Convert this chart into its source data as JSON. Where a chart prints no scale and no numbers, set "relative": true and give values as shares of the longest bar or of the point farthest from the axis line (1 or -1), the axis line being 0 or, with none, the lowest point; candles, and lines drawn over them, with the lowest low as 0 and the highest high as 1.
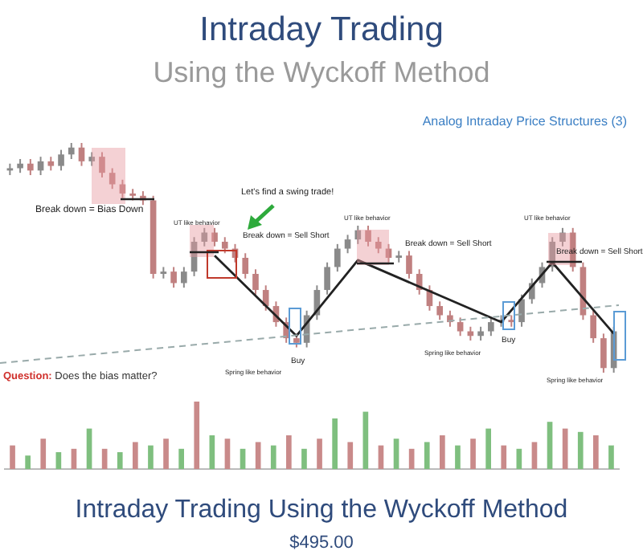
{
  "chart_data": [
    {
      "type": "candlestick",
      "title": "Intraday Trading",
      "subtitle": "Using the Wyckoff Method",
      "relative": true,
      "colors": [
        "#8a8a8a",
        "#8a8a8a",
        "#c08080",
        "#8a8a8a",
        "#c08080",
        "#8a8a8a",
        "#8a8a8a",
        "#c08080",
        "#8a8a8a",
        "#c08080",
        "#c08080",
        "#c08080",
        "#c08080",
        "#c08080",
        "#c08080",
        "#8a8a8a",
        "#c08080",
        "#8a8a8a",
        "#8a8a8a",
        "#8a8a8a",
        "#c08080",
        "#c08080",
        "#c08080",
        "#c08080",
        "#c08080",
        "#c08080",
        "#c08080",
        "#c08080",
        "#c08080",
        "#8a8a8a",
        "#8a8a8a",
        "#8a8a8a",
        "#8a8a8a",
        "#8a8a8a",
        "#8a8a8a",
        "#c08080",
        "#c08080",
        "#c08080",
        "#8a8a8a",
        "#c08080",
        "#c08080",
        "#c08080",
        "#c08080",
        "#c08080",
        "#c08080",
        "#c08080",
        "#8a8a8a",
        "#8a8a8a",
        "#8a8a8a",
        "#c08080",
        "#8a8a8a",
        "#8a8a8a",
        "#8a8a8a",
        "#8a8a8a",
        "#8a8a8a",
        "#c08080",
        "#c08080",
        "#c08080",
        "#c08080",
        "#8a8a8a"
      ],
      "categories": [
        null,
        null,
        null,
        null,
        null,
        null,
        null,
        null,
        null,
        null,
        null,
        null,
        null,
        null,
        null,
        null,
        null,
        null,
        null,
        null,
        null,
        null,
        null,
        null,
        null,
        null,
        null,
        null,
        null,
        null,
        null,
        null,
        null,
        null,
        null,
        null,
        null,
        null,
        null,
        null,
        null,
        null,
        null,
        null,
        null,
        null,
        null,
        null,
        null,
        null,
        null,
        null,
        null,
        null,
        null,
        null,
        null,
        null,
        null,
        null
      ],
      "ohlc": [
        [
          0.88,
          0.91,
          0.86,
          0.89
        ],
        [
          0.89,
          0.93,
          0.87,
          0.91
        ],
        [
          0.91,
          0.93,
          0.86,
          0.88
        ],
        [
          0.88,
          0.94,
          0.86,
          0.92
        ],
        [
          0.92,
          0.94,
          0.88,
          0.9
        ],
        [
          0.9,
          0.97,
          0.88,
          0.95
        ],
        [
          0.95,
          1.0,
          0.93,
          0.98
        ],
        [
          0.98,
          1.0,
          0.9,
          0.92
        ],
        [
          0.92,
          0.96,
          0.9,
          0.94
        ],
        [
          0.94,
          0.96,
          0.85,
          0.87
        ],
        [
          0.87,
          0.89,
          0.8,
          0.82
        ],
        [
          0.82,
          0.84,
          0.76,
          0.78
        ],
        [
          0.78,
          0.8,
          0.75,
          0.77
        ],
        [
          0.77,
          0.79,
          0.73,
          0.75
        ],
        [
          0.75,
          0.77,
          0.41,
          0.43
        ],
        [
          0.43,
          0.46,
          0.41,
          0.44
        ],
        [
          0.44,
          0.46,
          0.37,
          0.39
        ],
        [
          0.39,
          0.46,
          0.37,
          0.44
        ],
        [
          0.44,
          0.59,
          0.42,
          0.57
        ],
        [
          0.57,
          0.63,
          0.55,
          0.61
        ],
        [
          0.61,
          0.63,
          0.55,
          0.57
        ],
        [
          0.57,
          0.59,
          0.52,
          0.54
        ],
        [
          0.54,
          0.56,
          0.48,
          0.5
        ],
        [
          0.5,
          0.52,
          0.41,
          0.43
        ],
        [
          0.43,
          0.45,
          0.34,
          0.36
        ],
        [
          0.36,
          0.38,
          0.27,
          0.29
        ],
        [
          0.29,
          0.31,
          0.2,
          0.22
        ],
        [
          0.22,
          0.24,
          0.13,
          0.15
        ],
        [
          0.15,
          0.17,
          0.11,
          0.13
        ],
        [
          0.13,
          0.27,
          0.11,
          0.25
        ],
        [
          0.25,
          0.38,
          0.23,
          0.36
        ],
        [
          0.36,
          0.48,
          0.34,
          0.46
        ],
        [
          0.46,
          0.56,
          0.44,
          0.54
        ],
        [
          0.54,
          0.6,
          0.52,
          0.58
        ],
        [
          0.58,
          0.64,
          0.56,
          0.62
        ],
        [
          0.62,
          0.64,
          0.55,
          0.57
        ],
        [
          0.57,
          0.59,
          0.52,
          0.54
        ],
        [
          0.54,
          0.56,
          0.48,
          0.5
        ],
        [
          0.5,
          0.53,
          0.48,
          0.51
        ],
        [
          0.51,
          0.53,
          0.41,
          0.43
        ],
        [
          0.43,
          0.45,
          0.34,
          0.36
        ],
        [
          0.36,
          0.38,
          0.27,
          0.29
        ],
        [
          0.29,
          0.31,
          0.23,
          0.25
        ],
        [
          0.25,
          0.27,
          0.2,
          0.22
        ],
        [
          0.22,
          0.24,
          0.16,
          0.18
        ],
        [
          0.18,
          0.2,
          0.14,
          0.16
        ],
        [
          0.16,
          0.2,
          0.14,
          0.18
        ],
        [
          0.18,
          0.24,
          0.16,
          0.22
        ],
        [
          0.22,
          0.25,
          0.2,
          0.23
        ],
        [
          0.23,
          0.25,
          0.2,
          0.22
        ],
        [
          0.22,
          0.34,
          0.2,
          0.32
        ],
        [
          0.32,
          0.41,
          0.3,
          0.39
        ],
        [
          0.39,
          0.48,
          0.37,
          0.46
        ],
        [
          0.46,
          0.59,
          0.44,
          0.57
        ],
        [
          0.57,
          0.63,
          0.55,
          0.61
        ],
        [
          0.61,
          0.63,
          0.44,
          0.46
        ],
        [
          0.46,
          0.48,
          0.23,
          0.25
        ],
        [
          0.25,
          0.27,
          0.13,
          0.15
        ],
        [
          0.15,
          0.17,
          0.0,
          0.02
        ],
        [
          0.02,
          0.2,
          0.0,
          0.18
        ]
      ],
      "series": [
        {
          "type": "line",
          "color": "#222222",
          "values": [
            null,
            null,
            null,
            null,
            null,
            null,
            null,
            null,
            null,
            null,
            null,
            null,
            null,
            null,
            null,
            null,
            null,
            null,
            null,
            null,
            0.51,
            null,
            null,
            null,
            null,
            null,
            null,
            null,
            0.16,
            null,
            null,
            null,
            null,
            null,
            0.49,
            null,
            null,
            null,
            null,
            null,
            null,
            null,
            null,
            null,
            null,
            null,
            null,
            null,
            0.22,
            null,
            null,
            null,
            null,
            0.48,
            null,
            null,
            null,
            null,
            null,
            0.17
          ]
        }
      ],
      "annotations": [
        "Analog Intraday Price Structures (3)",
        "Break down = Bias Down",
        "Let's find a swing trade!",
        "UT like behavior",
        "Break down = Sell Short",
        "UT like behavior",
        "Break down = Sell Short",
        "UT like behavior",
        "Break down = Sell Short",
        "Buy",
        "Spring like behavior",
        "Spring like behavior",
        "Buy",
        "Spring like behavior",
        "Question: Does the bias matter?",
        "Intraday Trading Using the Wyckoff Method",
        "$495.00"
      ]
    },
    {
      "type": "bar",
      "relative": true,
      "categories": [
        null,
        null,
        null,
        null,
        null,
        null,
        null,
        null,
        null,
        null,
        null,
        null,
        null,
        null,
        null,
        null,
        null,
        null,
        null,
        null,
        null,
        null,
        null,
        null,
        null,
        null,
        null,
        null,
        null,
        null,
        null,
        null,
        null,
        null,
        null,
        null,
        null,
        null,
        null,
        null
      ],
      "values": [
        0.35,
        0.2,
        0.45,
        0.25,
        0.3,
        0.6,
        0.3,
        0.25,
        0.4,
        0.35,
        0.45,
        0.3,
        1.0,
        0.5,
        0.45,
        0.3,
        0.4,
        0.35,
        0.5,
        0.3,
        0.45,
        0.75,
        0.4,
        0.85,
        0.35,
        0.45,
        0.3,
        0.4,
        0.5,
        0.35,
        0.45,
        0.6,
        0.35,
        0.3,
        0.4,
        0.7,
        0.6,
        0.55,
        0.5,
        0.35
      ],
      "colors": [
        "#c98a8a",
        "#7fbf7f",
        "#c98a8a",
        "#7fbf7f",
        "#c98a8a",
        "#7fbf7f",
        "#c98a8a",
        "#7fbf7f",
        "#c98a8a",
        "#7fbf7f",
        "#c98a8a",
        "#7fbf7f",
        "#c98a8a",
        "#7fbf7f",
        "#c98a8a",
        "#7fbf7f",
        "#c98a8a",
        "#7fbf7f",
        "#c98a8a",
        "#7fbf7f",
        "#c98a8a",
        "#7fbf7f",
        "#c98a8a",
        "#7fbf7f",
        "#c98a8a",
        "#7fbf7f",
        "#c98a8a",
        "#7fbf7f",
        "#c98a8a",
        "#7fbf7f",
        "#c98a8a",
        "#7fbf7f",
        "#c98a8a",
        "#7fbf7f",
        "#c98a8a",
        "#7fbf7f",
        "#c98a8a",
        "#7fbf7f",
        "#c98a8a",
        "#7fbf7f"
      ]
    }
  ]
}
